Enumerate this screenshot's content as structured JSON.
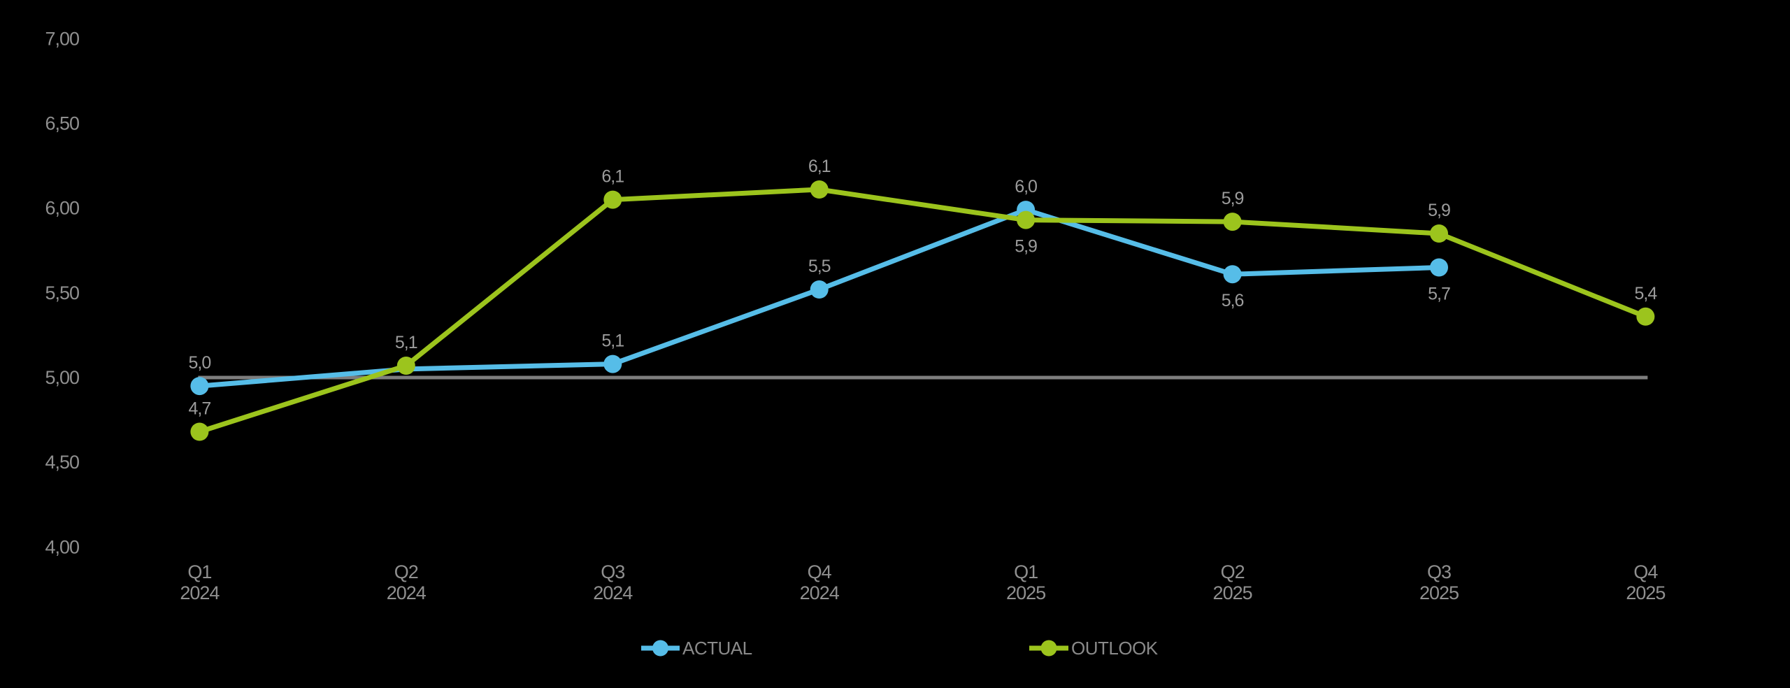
{
  "chart_data": {
    "type": "line",
    "title": "",
    "xlabel": "",
    "ylabel": "",
    "background_color": "#000000",
    "grid": false,
    "number_format": "comma-decimal",
    "categories": [
      "Q1 2024",
      "Q2 2024",
      "Q3 2024",
      "Q4 2024",
      "Q1 2025",
      "Q2 2025",
      "Q3 2025",
      "Q4 2025"
    ],
    "categories_two_line": [
      {
        "quarter": "Q1",
        "year": "2024"
      },
      {
        "quarter": "Q2",
        "year": "2024"
      },
      {
        "quarter": "Q3",
        "year": "2024"
      },
      {
        "quarter": "Q4",
        "year": "2024"
      },
      {
        "quarter": "Q1",
        "year": "2025"
      },
      {
        "quarter": "Q2",
        "year": "2025"
      },
      {
        "quarter": "Q3",
        "year": "2025"
      },
      {
        "quarter": "Q4",
        "year": "2025"
      }
    ],
    "ylim": [
      4.0,
      7.0
    ],
    "ytick_step": 0.5,
    "ytick_labels_top_to_bottom": [
      "7,00",
      "6,50",
      "6,00",
      "5,50",
      "5,00",
      "4,50",
      "4,00"
    ],
    "reference_line": {
      "value": 5.0,
      "color": "#7E7E7E"
    },
    "series": [
      {
        "name": "ACTUAL",
        "color": "#56BDE8",
        "values": [
          5.0,
          5.1,
          5.1,
          5.5,
          6.0,
          5.6,
          5.7,
          null
        ],
        "plotted": [
          4.95,
          5.05,
          5.08,
          5.52,
          5.99,
          5.61,
          5.65,
          null
        ],
        "data_labels": [
          "5,0",
          null,
          "5,1",
          "5,5",
          "6,0",
          "5,6",
          "5,7",
          null
        ],
        "label_side": [
          "above",
          null,
          "above",
          "above",
          "above",
          "below",
          "below",
          null
        ]
      },
      {
        "name": "OUTLOOK",
        "color": "#9CC41D",
        "values": [
          4.7,
          5.1,
          6.1,
          6.1,
          5.9,
          5.9,
          5.9,
          5.4
        ],
        "plotted": [
          4.68,
          5.07,
          6.05,
          6.11,
          5.93,
          5.92,
          5.85,
          5.36
        ],
        "data_labels": [
          "4,7",
          "5,1",
          "6,1",
          "6,1",
          "5,9",
          "5,9",
          "5,9",
          "5,4"
        ],
        "label_side": [
          "above",
          "above",
          "above",
          "above",
          "below",
          "above",
          "above",
          "above"
        ]
      }
    ],
    "legend": {
      "position": "bottom-center",
      "entries": [
        {
          "label": "ACTUAL",
          "color": "#56BDE8"
        },
        {
          "label": "OUTLOOK",
          "color": "#9CC41D"
        }
      ]
    }
  }
}
